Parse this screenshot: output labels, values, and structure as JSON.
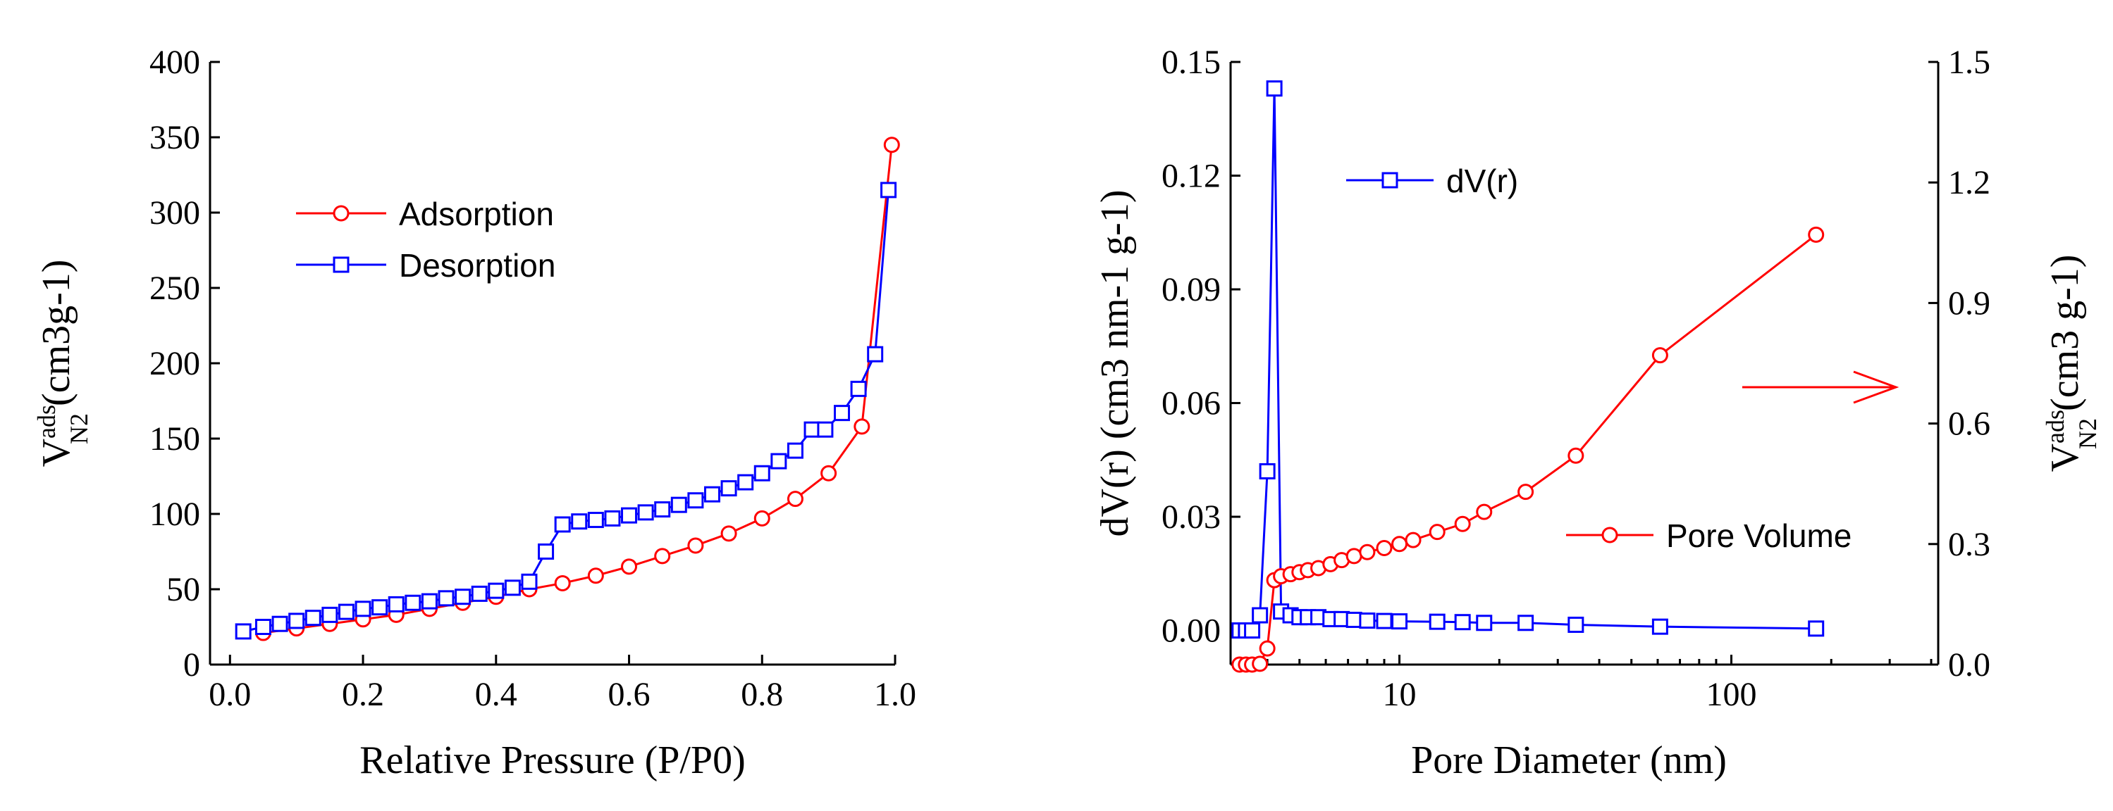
{
  "colors": {
    "adsorption": "#ff0000",
    "desorption": "#0000ff",
    "axis": "#000000"
  },
  "chart_data": [
    {
      "type": "line",
      "title": "",
      "xlabel": "Relative Pressure (P/P0)",
      "ylabel_prefix": "V",
      "ylabel_sup": "ads",
      "ylabel_sub": "N2",
      "ylabel_unit": "(cm3g-1)",
      "xlim": [
        -0.03,
        1.0
      ],
      "ylim": [
        0,
        400
      ],
      "xticks": [
        0.0,
        0.2,
        0.4,
        0.6,
        0.8,
        1.0
      ],
      "xtick_labels": [
        "0.0",
        "0.2",
        "0.4",
        "0.6",
        "0.8",
        "1.0"
      ],
      "yticks": [
        0,
        50,
        100,
        150,
        200,
        250,
        300,
        350,
        400
      ],
      "ytick_labels": [
        "0",
        "50",
        "100",
        "150",
        "200",
        "250",
        "300",
        "350",
        "400"
      ],
      "legend_position": "upper-left",
      "series": [
        {
          "name": "Adsorption",
          "color": "#ff0000",
          "marker": "circle",
          "x": [
            0.05,
            0.1,
            0.15,
            0.2,
            0.25,
            0.3,
            0.35,
            0.4,
            0.45,
            0.5,
            0.55,
            0.6,
            0.65,
            0.7,
            0.75,
            0.8,
            0.85,
            0.9,
            0.95,
            0.995
          ],
          "y": [
            21,
            24,
            27,
            30,
            33,
            37,
            41,
            45,
            50,
            54,
            59,
            65,
            72,
            79,
            87,
            97,
            110,
            127,
            158,
            345
          ]
        },
        {
          "name": "Desorption",
          "color": "#0000ff",
          "marker": "square",
          "x": [
            0.02,
            0.05,
            0.075,
            0.1,
            0.125,
            0.15,
            0.175,
            0.2,
            0.225,
            0.25,
            0.275,
            0.3,
            0.325,
            0.35,
            0.375,
            0.4,
            0.425,
            0.45,
            0.475,
            0.5,
            0.525,
            0.55,
            0.575,
            0.6,
            0.625,
            0.65,
            0.675,
            0.7,
            0.725,
            0.75,
            0.775,
            0.8,
            0.825,
            0.85,
            0.875,
            0.895,
            0.92,
            0.945,
            0.97,
            0.99
          ],
          "y": [
            22,
            25,
            27,
            29,
            31,
            33,
            35,
            37,
            38,
            40,
            41,
            42,
            44,
            45,
            47,
            49,
            51,
            55,
            75,
            93,
            95,
            96,
            97,
            99,
            101,
            103,
            106,
            109,
            113,
            117,
            121,
            127,
            135,
            142,
            156,
            156,
            167,
            183,
            206,
            315
          ]
        }
      ]
    },
    {
      "type": "line",
      "title": "",
      "xlabel": "Pore Diameter (nm)",
      "xscale": "log",
      "ylabel_left": "dV(r) (cm3 nm-1 g-1)",
      "ylabel_right_prefix": "V",
      "ylabel_right_sup": "ads",
      "ylabel_right_sub": "N2",
      "ylabel_right_unit": "(cm3 g-1)",
      "xlim": [
        3.1,
        420
      ],
      "ylim_left": [
        -0.009,
        0.15
      ],
      "ylim_right": [
        0,
        1.5
      ],
      "xticks": [
        10,
        100
      ],
      "xtick_labels": [
        "10",
        "100"
      ],
      "yticks_left": [
        0.0,
        0.03,
        0.06,
        0.09,
        0.12,
        0.15
      ],
      "ytick_labels_left": [
        "0.00",
        "0.03",
        "0.06",
        "0.09",
        "0.12",
        "0.15"
      ],
      "yticks_right": [
        0.0,
        0.3,
        0.6,
        0.9,
        1.2,
        1.5
      ],
      "ytick_labels_right": [
        "0.0",
        "0.3",
        "0.6",
        "0.9",
        "1.2",
        "1.5"
      ],
      "annotation": "arrow pointing to right axis",
      "series": [
        {
          "name": "dV(r)",
          "axis": "left",
          "color": "#0000ff",
          "marker": "square",
          "x": [
            3.3,
            3.45,
            3.6,
            3.8,
            4.0,
            4.2,
            4.4,
            4.7,
            5.0,
            5.3,
            5.7,
            6.2,
            6.7,
            7.3,
            8.0,
            9.0,
            10.0,
            13.0,
            15.5,
            18.0,
            24.0,
            34.0,
            61.0,
            180.0
          ],
          "y": [
            0.0,
            0.0,
            0.0,
            0.004,
            0.042,
            0.143,
            0.005,
            0.004,
            0.0035,
            0.0035,
            0.0035,
            0.003,
            0.003,
            0.0028,
            0.0026,
            0.0025,
            0.0024,
            0.0023,
            0.0022,
            0.002,
            0.002,
            0.0015,
            0.001,
            0.0005
          ]
        },
        {
          "name": "Pore Volume",
          "axis": "right",
          "color": "#ff0000",
          "marker": "circle",
          "x": [
            3.3,
            3.45,
            3.6,
            3.8,
            4.0,
            4.2,
            4.4,
            4.7,
            5.0,
            5.3,
            5.7,
            6.2,
            6.7,
            7.3,
            8.0,
            9.0,
            10.0,
            11.0,
            13.0,
            15.5,
            18.0,
            24.0,
            34.0,
            61.0,
            180.0
          ],
          "y": [
            0.0,
            0.0,
            0.0,
            0.002,
            0.04,
            0.21,
            0.22,
            0.225,
            0.23,
            0.235,
            0.24,
            0.25,
            0.26,
            0.27,
            0.28,
            0.29,
            0.3,
            0.31,
            0.33,
            0.35,
            0.38,
            0.43,
            0.52,
            0.77,
            1.07
          ]
        }
      ]
    }
  ]
}
